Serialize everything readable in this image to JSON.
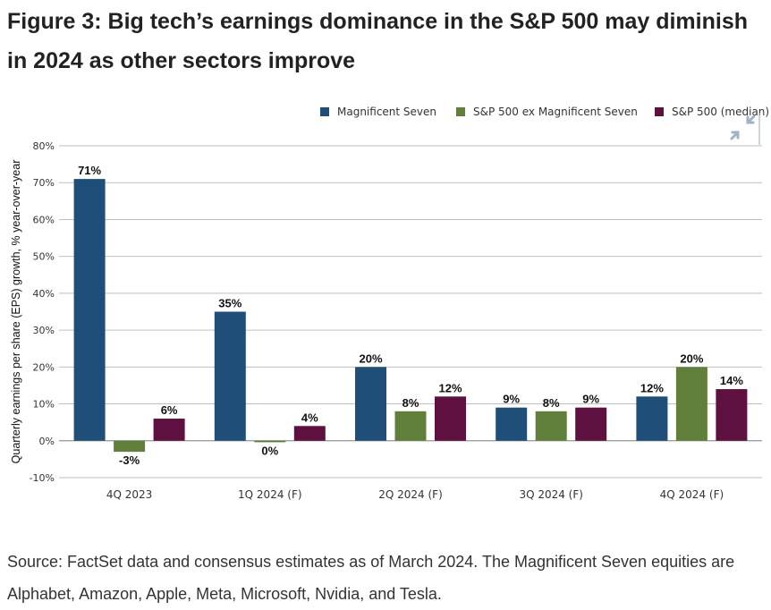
{
  "title": "Figure 3: Big tech’s earnings dominance in the S&P 500 may diminish in 2024 as other sectors improve",
  "source": "Source: FactSet data and consensus estimates as of March 2024. The Magnificent Seven equities are Alphabet, Amazon, Apple, Meta, Microsoft, Nvidia, and Tesla.",
  "icons": {
    "expand": "expand-arrows-icon"
  },
  "chart_data": {
    "type": "bar",
    "ylabel": "Quarterly earnings per share (EPS) growth, % year-over-year",
    "xlabel": "",
    "ylim": [
      -10,
      80
    ],
    "yticks": [
      -10,
      0,
      10,
      20,
      30,
      40,
      50,
      60,
      70,
      80
    ],
    "ytick_labels": [
      "-10%",
      "0%",
      "10%",
      "20%",
      "30%",
      "40%",
      "50%",
      "60%",
      "70%",
      "80%"
    ],
    "grid": true,
    "legend_position": "top-right",
    "categories": [
      "4Q 2023",
      "1Q 2024 (F)",
      "2Q 2024 (F)",
      "3Q 2024 (F)",
      "4Q 2024 (F)"
    ],
    "series": [
      {
        "name": "Magnificent Seven",
        "color": "#1f4e79",
        "values": [
          71,
          35,
          20,
          9,
          12
        ],
        "labels": [
          "71%",
          "35%",
          "20%",
          "9%",
          "12%"
        ]
      },
      {
        "name": "S&P 500 ex Magnificent Seven",
        "color": "#5f7f3a",
        "values": [
          -3,
          -0.4,
          8,
          8,
          20
        ],
        "labels": [
          "-3%",
          "0%",
          "8%",
          "8%",
          "20%"
        ]
      },
      {
        "name": "S&P 500 (median)",
        "color": "#5e1040",
        "values": [
          6,
          4,
          12,
          9,
          14
        ],
        "labels": [
          "6%",
          "4%",
          "12%",
          "9%",
          "14%"
        ]
      }
    ]
  }
}
